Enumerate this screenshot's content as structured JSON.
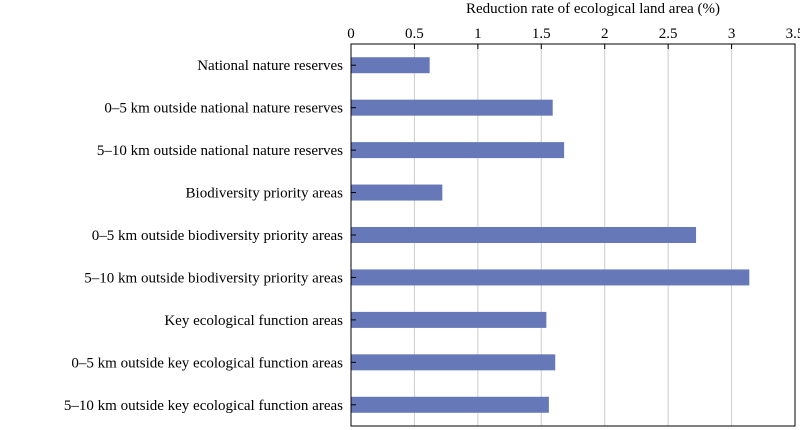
{
  "chart_data": {
    "type": "bar",
    "orientation": "horizontal",
    "xlabel": "Reduction rate of ecological land area (%)",
    "xlim": [
      0,
      3.5
    ],
    "xticks": [
      "0",
      "0.5",
      "1",
      "1.5",
      "2",
      "2.5",
      "3",
      "3.5"
    ],
    "x_axis_position": "top",
    "grid": "vertical",
    "bar_color": "#6678b8",
    "categories": [
      "National nature reserves",
      "0–5 km outside national nature reserves",
      "5–10 km outside national nature reserves",
      "Biodiversity priority areas",
      "0–5 km outside biodiversity priority areas",
      "5–10 km outside biodiversity priority areas",
      "Key ecological function areas",
      "0–5 km outside key ecological function areas",
      "5–10 km outside key ecological function areas"
    ],
    "values": [
      0.62,
      1.59,
      1.68,
      0.72,
      2.72,
      3.14,
      1.54,
      1.61,
      1.56
    ]
  }
}
